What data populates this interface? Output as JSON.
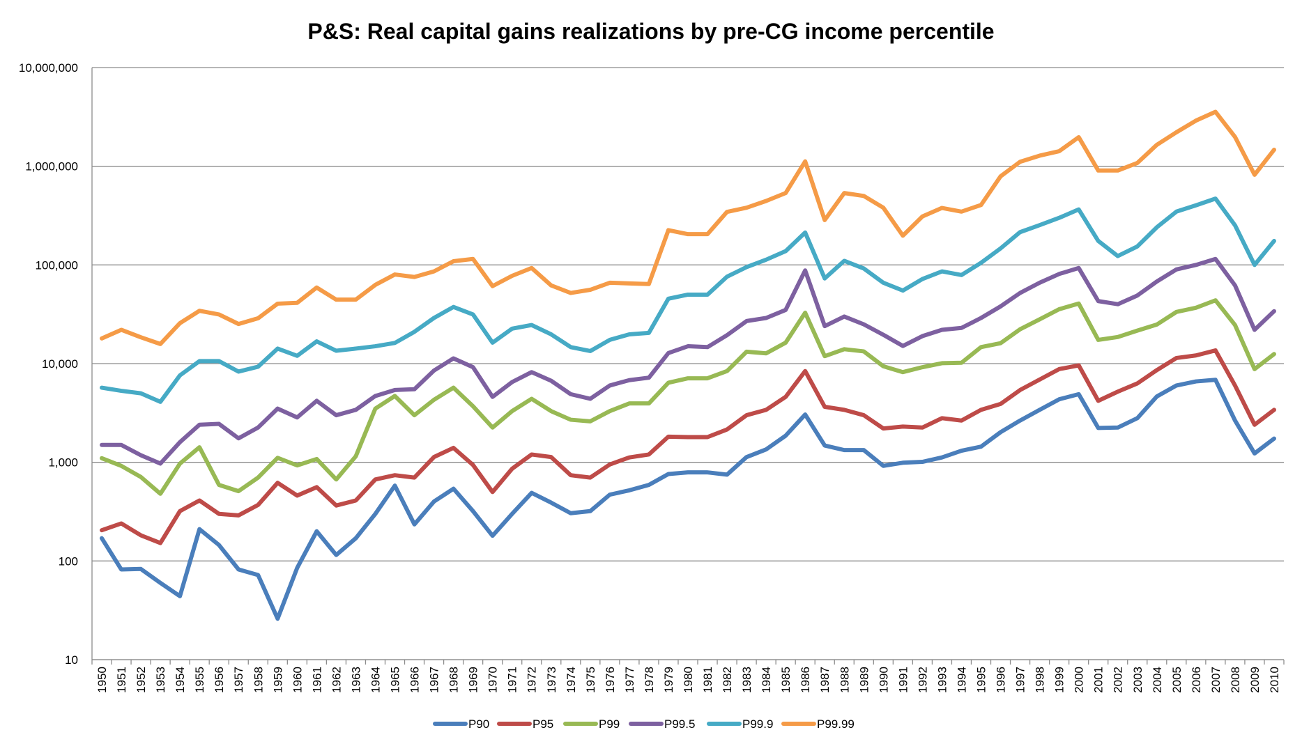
{
  "chart_data": {
    "type": "line",
    "title": "P&S: Real capital gains realizations by pre-CG income percentile",
    "xlabel": "",
    "ylabel": "",
    "y_scale": "log",
    "ylim": [
      10,
      10000000
    ],
    "y_ticks": [
      10,
      100,
      1000,
      10000,
      100000,
      1000000,
      10000000
    ],
    "y_tick_labels": [
      "10",
      "100",
      "1,000",
      "10,000",
      "100,000",
      "1,000,000",
      "10,000,000"
    ],
    "grid": "horizontal",
    "legend_position": "bottom",
    "categories": [
      "1950",
      "1951",
      "1952",
      "1953",
      "1954",
      "1955",
      "1956",
      "1957",
      "1958",
      "1959",
      "1960",
      "1961",
      "1962",
      "1963",
      "1964",
      "1965",
      "1966",
      "1967",
      "1968",
      "1969",
      "1970",
      "1971",
      "1972",
      "1973",
      "1974",
      "1975",
      "1976",
      "1977",
      "1978",
      "1979",
      "1980",
      "1981",
      "1982",
      "1983",
      "1984",
      "1985",
      "1986",
      "1987",
      "1988",
      "1989",
      "1990",
      "1991",
      "1992",
      "1993",
      "1994",
      "1995",
      "1996",
      "1997",
      "1998",
      "1999",
      "2000",
      "2001",
      "2002",
      "2003",
      "2004",
      "2005",
      "2006",
      "2007",
      "2008",
      "2009",
      "2010"
    ],
    "series": [
      {
        "name": "P90",
        "color": "#4a7ebb",
        "values": [
          170,
          82,
          83,
          60,
          44,
          210,
          145,
          82,
          72,
          26,
          85,
          200,
          115,
          170,
          300,
          580,
          235,
          400,
          540,
          320,
          180,
          300,
          490,
          390,
          305,
          320,
          470,
          520,
          590,
          760,
          790,
          790,
          750,
          1130,
          1350,
          1860,
          3050,
          1480,
          1330,
          1330,
          920,
          990,
          1010,
          1120,
          1310,
          1440,
          2020,
          2650,
          3400,
          4350,
          4900,
          2230,
          2250,
          2800,
          4650,
          6000,
          6600,
          6850,
          2650,
          1230,
          1740
        ]
      },
      {
        "name": "P95",
        "color": "#be4b48",
        "values": [
          205,
          240,
          182,
          152,
          320,
          410,
          300,
          290,
          370,
          620,
          460,
          560,
          365,
          410,
          670,
          740,
          700,
          1130,
          1400,
          940,
          500,
          860,
          1200,
          1130,
          740,
          700,
          950,
          1120,
          1200,
          1820,
          1800,
          1800,
          2150,
          3000,
          3400,
          4600,
          8400,
          3650,
          3400,
          3000,
          2200,
          2300,
          2250,
          2800,
          2650,
          3400,
          3900,
          5400,
          6900,
          8800,
          9600,
          4200,
          5200,
          6300,
          8600,
          11400,
          12100,
          13600,
          6000,
          2400,
          3400
        ]
      },
      {
        "name": "P99",
        "color": "#98b954",
        "values": [
          1100,
          920,
          710,
          480,
          970,
          1420,
          590,
          510,
          700,
          1110,
          930,
          1080,
          670,
          1150,
          3500,
          4700,
          3000,
          4300,
          5700,
          3700,
          2250,
          3300,
          4400,
          3300,
          2700,
          2600,
          3300,
          3950,
          3950,
          6400,
          7100,
          7100,
          8400,
          13200,
          12700,
          16300,
          32800,
          11900,
          14000,
          13300,
          9400,
          8200,
          9200,
          10100,
          10200,
          14700,
          16100,
          22300,
          28100,
          35600,
          40600,
          17400,
          18600,
          21600,
          24900,
          33400,
          36800,
          43800,
          24600,
          8800,
          12500
        ]
      },
      {
        "name": "P99.5",
        "color": "#7d60a0",
        "values": [
          1500,
          1500,
          1180,
          970,
          1600,
          2400,
          2450,
          1750,
          2250,
          3500,
          2850,
          4200,
          3000,
          3400,
          4700,
          5400,
          5500,
          8500,
          11300,
          9200,
          4600,
          6500,
          8200,
          6700,
          4900,
          4400,
          6000,
          6800,
          7200,
          12800,
          15000,
          14700,
          19400,
          27000,
          29000,
          35000,
          88000,
          24000,
          30000,
          25000,
          19600,
          15100,
          19000,
          22000,
          23000,
          29000,
          38000,
          52000,
          66000,
          81000,
          93000,
          43000,
          40000,
          49000,
          68000,
          90000,
          100000,
          115000,
          62000,
          22000,
          34000
        ]
      },
      {
        "name": "P99.9",
        "color": "#46aac5",
        "values": [
          5700,
          5300,
          5000,
          4100,
          7600,
          10600,
          10600,
          8300,
          9300,
          14200,
          12000,
          16800,
          13500,
          14200,
          15000,
          16200,
          21000,
          29000,
          37500,
          31500,
          16300,
          22600,
          24600,
          19800,
          14700,
          13400,
          17400,
          19800,
          20500,
          45500,
          50000,
          50000,
          76000,
          95000,
          113000,
          138000,
          213000,
          73000,
          110000,
          92000,
          66000,
          55000,
          72000,
          86000,
          79000,
          105000,
          147000,
          215000,
          253000,
          300000,
          365000,
          175000,
          123000,
          154000,
          241000,
          347000,
          402000,
          470000,
          252000,
          100000,
          175000
        ]
      },
      {
        "name": "P99.99",
        "color": "#f59b47",
        "values": [
          18000,
          22000,
          18500,
          15800,
          25700,
          34300,
          31500,
          25200,
          28800,
          40500,
          41300,
          59000,
          44500,
          44500,
          62800,
          80000,
          75500,
          86000,
          109000,
          115000,
          61000,
          77500,
          93000,
          62000,
          52000,
          56000,
          66000,
          65000,
          64000,
          225000,
          205000,
          205000,
          345000,
          380000,
          445000,
          535000,
          1120000,
          285000,
          535000,
          500000,
          380000,
          198000,
          310000,
          378000,
          347000,
          405000,
          790000,
          1110000,
          1280000,
          1420000,
          1970000,
          905000,
          905000,
          1080000,
          1650000,
          2210000,
          2900000,
          3560000,
          1980000,
          820000,
          1470000
        ]
      }
    ]
  }
}
